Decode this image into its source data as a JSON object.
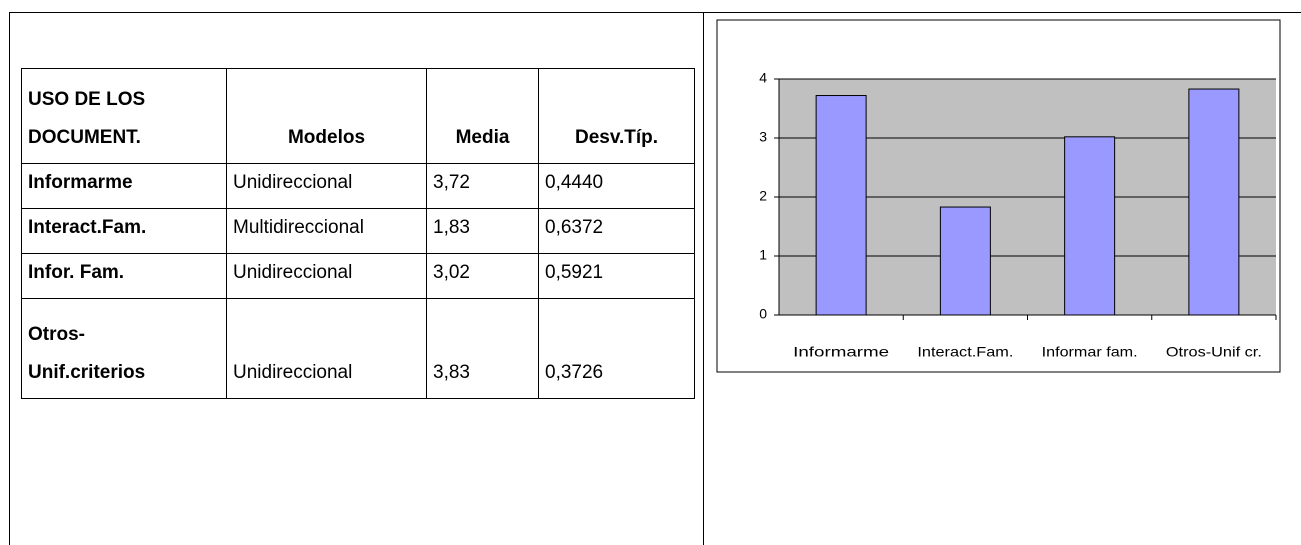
{
  "table": {
    "header": [
      [
        "USO DE LOS",
        "DOCUMENT."
      ],
      [
        "Modelos"
      ],
      [
        "Media"
      ],
      [
        "Desv.Típ."
      ]
    ],
    "rows": [
      [
        [
          "Informarme"
        ],
        [
          "Unidireccional"
        ],
        [
          "3,72"
        ],
        [
          "0,4440"
        ]
      ],
      [
        [
          "Interact.Fam."
        ],
        [
          "Multidireccional"
        ],
        [
          "1,83"
        ],
        [
          "0,6372"
        ]
      ],
      [
        [
          "Infor. Fam."
        ],
        [
          "Unidireccional"
        ],
        [
          "3,02"
        ],
        [
          "0,5921"
        ]
      ],
      [
        [
          "Otros-",
          "Unif.criterios"
        ],
        [
          "Unidireccional"
        ],
        [
          "3,83"
        ],
        [
          "0,3726"
        ]
      ]
    ]
  },
  "chart_data": {
    "type": "bar",
    "categories": [
      "Informarme",
      "Interact.Fam.",
      "Informar fam.",
      "Otros-Unif cr."
    ],
    "values": [
      3.72,
      1.83,
      3.02,
      3.83
    ],
    "color": "#9999ff",
    "background": "#c0c0c0",
    "ylim": [
      0,
      4
    ],
    "yticks": [
      0,
      1,
      2,
      3,
      4
    ],
    "grid": true
  }
}
